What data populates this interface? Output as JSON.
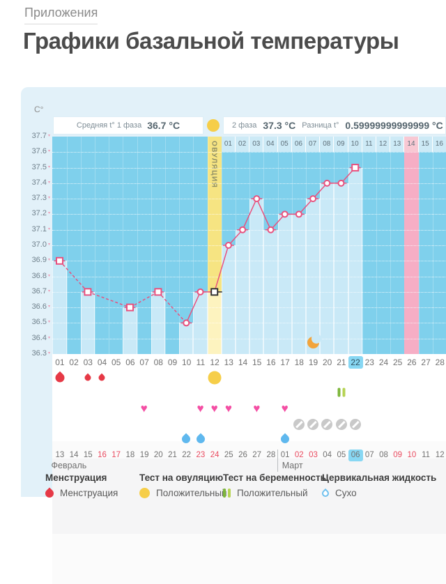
{
  "page": {
    "breadcrumb": "Приложения",
    "title": "Графики базальной температуры"
  },
  "chart_data": {
    "type": "line",
    "unit_label": "C°",
    "header": {
      "phase1_label": "Средняя t° 1 фаза",
      "phase1_value": "36.7 °C",
      "phase2_label": "2 фаза",
      "phase2_value": "37.3 °C",
      "diff_label": "Разница t°",
      "diff_value": "0.59999999999999 °C"
    },
    "y_axis": {
      "min": 36.3,
      "max": 37.7,
      "step": 0.1,
      "ticks": [
        "37.7",
        "37.6",
        "37.5",
        "37.4",
        "37.3",
        "37.2",
        "37.1",
        "37.0",
        "36.9",
        "36.8",
        "36.7",
        "36.6",
        "36.5",
        "36.4",
        "36.3"
      ]
    },
    "cycle_days": [
      "01",
      "02",
      "03",
      "04",
      "05",
      "06",
      "07",
      "08",
      "09",
      "10",
      "11",
      "12",
      "13",
      "14",
      "15",
      "16",
      "17",
      "18",
      "19",
      "20",
      "21",
      "22",
      "23",
      "24",
      "25",
      "26",
      "27",
      "28"
    ],
    "today_cycle_day": 22,
    "ovulation": {
      "day": 12,
      "label": "ОВУЛЯЦИЯ"
    },
    "phase2_start_cycle_day": 13,
    "phase2_days": [
      "01",
      "02",
      "03",
      "04",
      "05",
      "06",
      "07",
      "08",
      "09",
      "10",
      "11",
      "12",
      "13",
      "14",
      "15",
      "16"
    ],
    "phase2_highlight_day": "14",
    "expected_period_cycle_day": 26,
    "moon_day": 19,
    "dashed_through_day": 10,
    "points": [
      {
        "day": 1,
        "value": 36.9,
        "marker": "square"
      },
      {
        "day": 3,
        "value": 36.7,
        "marker": "square"
      },
      {
        "day": 6,
        "value": 36.6,
        "marker": "square"
      },
      {
        "day": 8,
        "value": 36.7,
        "marker": "square"
      },
      {
        "day": 10,
        "value": 36.5,
        "marker": "circle"
      },
      {
        "day": 11,
        "value": 36.7,
        "marker": "circle"
      },
      {
        "day": 12,
        "value": 36.7,
        "marker": "square-black"
      },
      {
        "day": 13,
        "value": 37.0,
        "marker": "circle"
      },
      {
        "day": 14,
        "value": 37.1,
        "marker": "circle"
      },
      {
        "day": 15,
        "value": 37.3,
        "marker": "circle"
      },
      {
        "day": 16,
        "value": 37.1,
        "marker": "circle"
      },
      {
        "day": 17,
        "value": 37.2,
        "marker": "circle"
      },
      {
        "day": 18,
        "value": 37.2,
        "marker": "circle"
      },
      {
        "day": 19,
        "value": 37.3,
        "marker": "circle"
      },
      {
        "day": 20,
        "value": 37.4,
        "marker": "circle"
      },
      {
        "day": 21,
        "value": 37.4,
        "marker": "circle"
      },
      {
        "day": 22,
        "value": 37.5,
        "marker": "square"
      }
    ]
  },
  "symbols": {
    "menstruation": [
      {
        "day": 1,
        "size": "lg"
      },
      {
        "day": 3,
        "size": "sm"
      },
      {
        "day": 4,
        "size": "sm"
      }
    ],
    "ovulation_test_positive": [
      12
    ],
    "pregnancy_test_positive": [
      21
    ],
    "hearts": [
      7,
      11,
      12,
      13,
      15,
      17
    ],
    "disabled": [
      18,
      19,
      20,
      21,
      22
    ],
    "fluid": [
      10,
      11,
      17
    ]
  },
  "calendar": {
    "dates": [
      {
        "d": "13"
      },
      {
        "d": "14"
      },
      {
        "d": "15"
      },
      {
        "d": "16",
        "red": true
      },
      {
        "d": "17",
        "red": true
      },
      {
        "d": "18"
      },
      {
        "d": "19"
      },
      {
        "d": "20"
      },
      {
        "d": "21"
      },
      {
        "d": "22"
      },
      {
        "d": "23",
        "red": true
      },
      {
        "d": "24",
        "red": true
      },
      {
        "d": "25"
      },
      {
        "d": "26"
      },
      {
        "d": "27"
      },
      {
        "d": "28"
      },
      {
        "d": "01"
      },
      {
        "d": "02",
        "red": true
      },
      {
        "d": "03",
        "red": true
      },
      {
        "d": "04"
      },
      {
        "d": "05"
      },
      {
        "d": "06",
        "today": true
      },
      {
        "d": "07"
      },
      {
        "d": "08"
      },
      {
        "d": "09",
        "red": true
      },
      {
        "d": "10",
        "red": true
      },
      {
        "d": "11"
      },
      {
        "d": "12"
      }
    ],
    "month_labels": [
      {
        "name": "Февраль",
        "start_index": 0
      },
      {
        "name": "Март",
        "start_index": 16
      }
    ]
  },
  "legend": [
    {
      "title": "Менструация",
      "item": "Менструация",
      "icon": "drop-red"
    },
    {
      "title": "Тест на овуляцию",
      "item": "Положительный",
      "icon": "circle-yellow"
    },
    {
      "title": "Тест на беременность",
      "item": "Положительный",
      "icon": "bars-green"
    },
    {
      "title": "Цервикальная жидкость",
      "item": "Сухо",
      "icon": "drop-outline"
    }
  ],
  "colors": {
    "line": "#e8517e",
    "marker_black": "#333333",
    "plot_bg": "#7fd0ec",
    "bar": "#c9e9f7",
    "ovulation_band": "#f6e482",
    "period_pink": "#f6aec5",
    "highlight_blue": "#87d7f3",
    "heart": "#f44fa4",
    "drop_red": "#e63946",
    "drop_blue": "#5fb8ee",
    "moon": "#f2a43b",
    "test_green": "#7eb73c"
  }
}
